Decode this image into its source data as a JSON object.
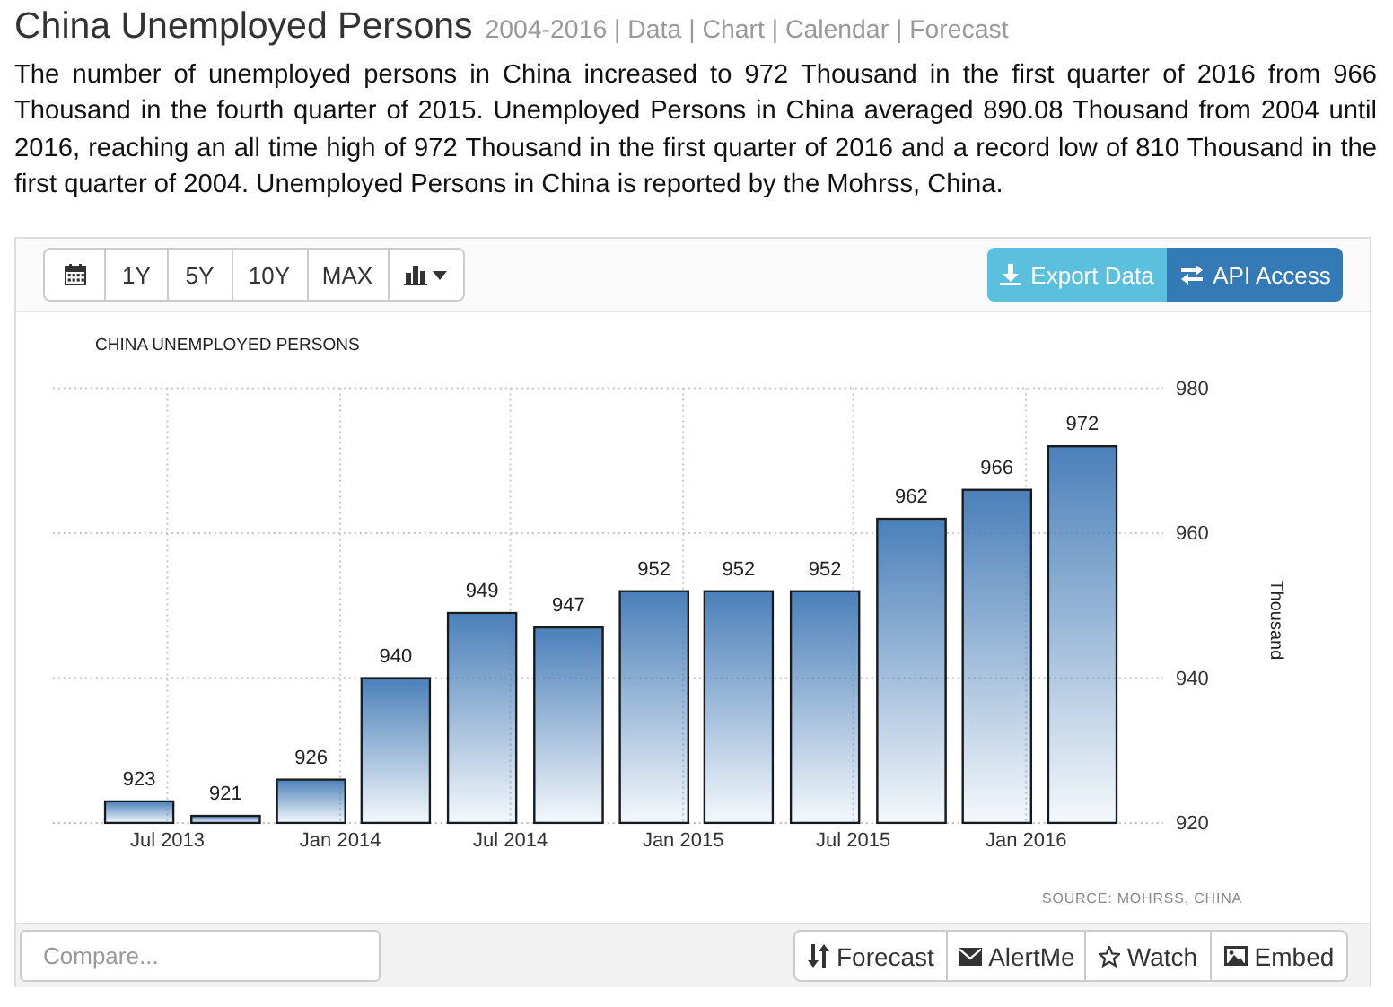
{
  "chart_data": {
    "type": "bar",
    "title": "CHINA UNEMPLOYED PERSONS",
    "ylabel": "Thousand",
    "x": [
      "2013-06",
      "2013-09",
      "2013-12",
      "2014-03",
      "2014-06",
      "2014-09",
      "2014-12",
      "2015-03",
      "2015-06",
      "2015-09",
      "2015-12",
      "2016-03"
    ],
    "values": [
      923,
      921,
      926,
      940,
      949,
      947,
      952,
      952,
      952,
      962,
      966,
      972
    ],
    "color": "#4a80b9",
    "xlim": [
      "2013-03-01",
      "2016-05-26"
    ],
    "xticks": [
      {
        "value": "2013-07",
        "label": "Jul 2013"
      },
      {
        "value": "2014-01",
        "label": "Jan 2014"
      },
      {
        "value": "2014-07",
        "label": "Jul 2014"
      },
      {
        "value": "2015-01",
        "label": "Jan 2015"
      },
      {
        "value": "2015-07",
        "label": "Jul 2015"
      },
      {
        "value": "2016-01",
        "label": "Jan 2016"
      }
    ],
    "ylim": [
      920,
      980
    ],
    "yticks": [
      920,
      940,
      960,
      980
    ],
    "grid": true,
    "data_labels": true,
    "annotations": [
      "China Unemployed Persons",
      "2004-2016 | Data | Chart | Calendar | Forecast",
      "The number of unemployed persons in China increased to 972 Thousand in the first quarter of 2016 from 966 Thousand in the fourth quarter of 2015. Unemployed Persons in China averaged 890.08 Thousand from 2004 until 2016, reaching an all time high of 972 Thousand in the first quarter of 2016 and a record low of 810 Thousand in the first quarter of 2004. Unemployed Persons in China is reported by the Mohrss, China.",
      "SOURCE: MOHRSS, CHINA",
      "1Y",
      "5Y",
      "10Y",
      "MAX",
      "Export Data",
      "API Access",
      "Compare...",
      "Forecast",
      "AlertMe",
      "Watch",
      "Embed"
    ]
  }
}
